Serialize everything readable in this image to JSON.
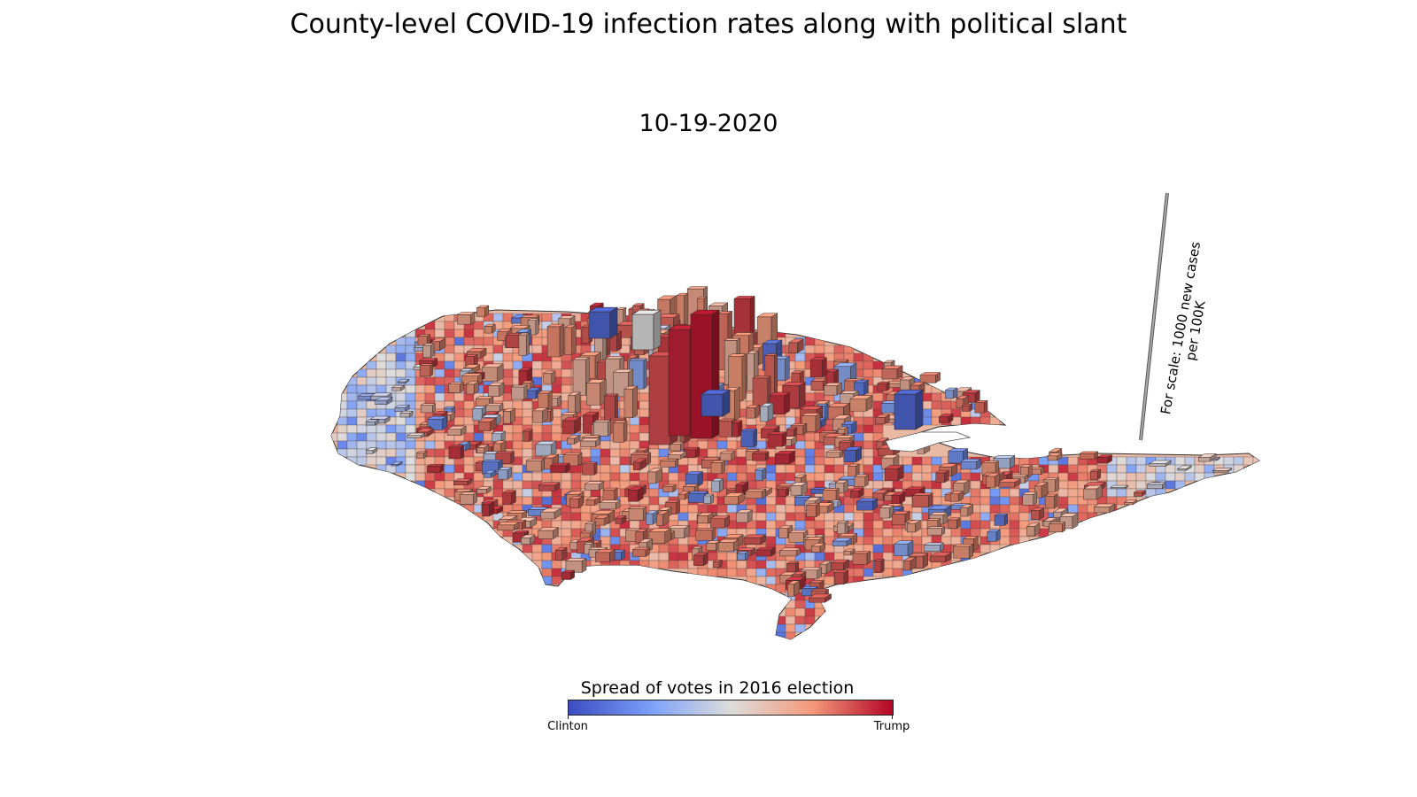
{
  "title": "County-level COVID-19 infection rates along with political slant",
  "date": "10-19-2020",
  "map": {
    "type": "3D choropleth / county prism map",
    "region": "contiguous United States",
    "bar_height_meaning": "new COVID-19 cases per 100K",
    "color_meaning": "spread of votes in 2016 election",
    "scale_bar_label": "For scale: 1000 new cases per 100K",
    "scale_bar_value": 1000
  },
  "colorbar": {
    "title": "Spread of votes in 2016 election",
    "left_label": "Clinton",
    "right_label": "Trump",
    "colors": [
      "#3b4cc0",
      "#7b9ff9",
      "#dddddd",
      "#f49a7b",
      "#b40426"
    ]
  }
}
